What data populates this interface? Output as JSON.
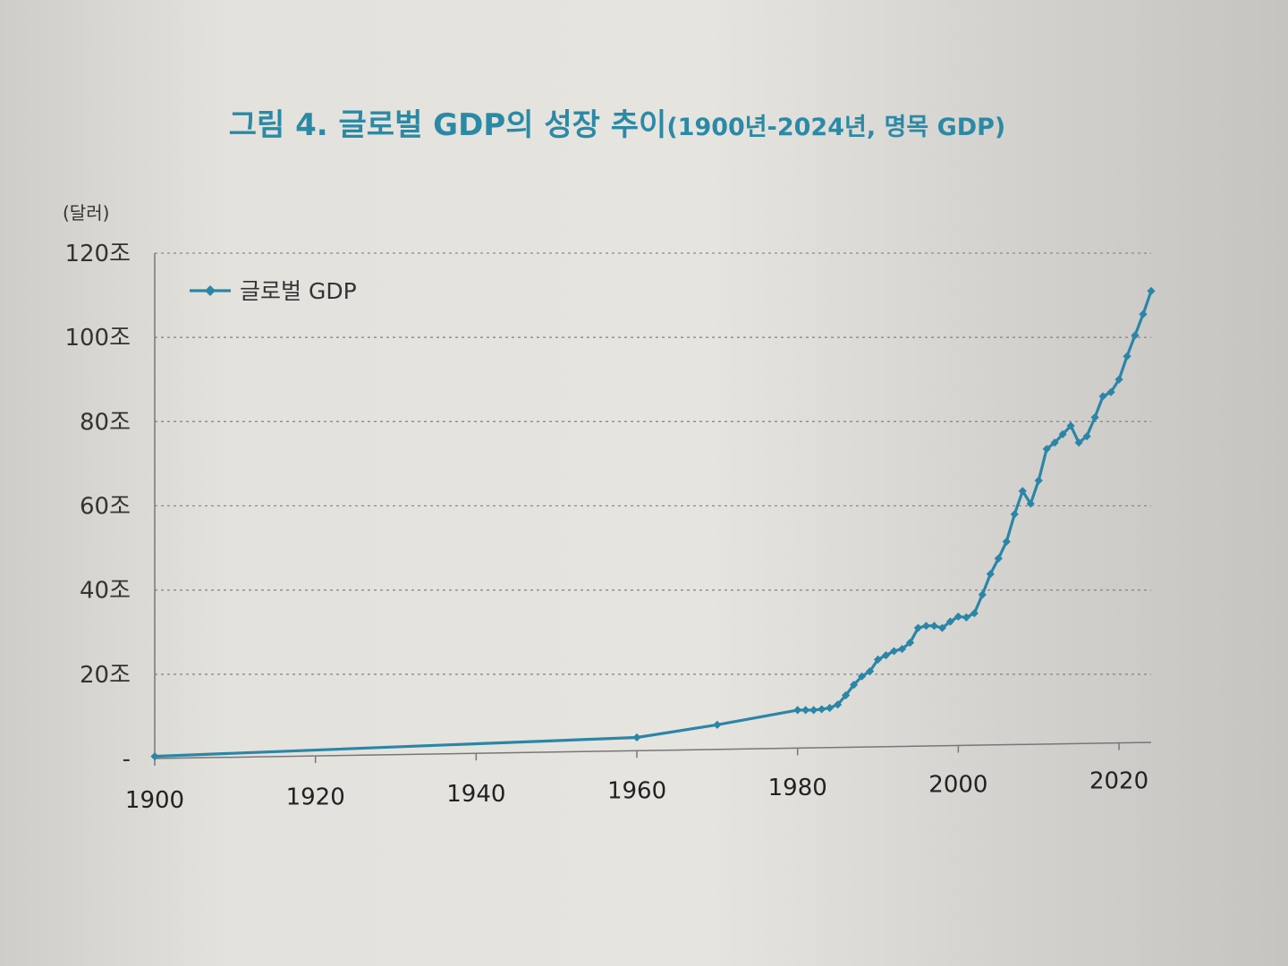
{
  "chart_data": {
    "type": "line",
    "title": "그림 4.  글로벌 GDP의 성장 추이",
    "subtitle": "(1900년-2024년, 명목 GDP)",
    "unit_label": "(달러)",
    "ylim": [
      0,
      120
    ],
    "xlim": [
      1900,
      2024
    ],
    "y_ticks": [
      {
        "value": 0,
        "label": "-"
      },
      {
        "value": 20,
        "label": "20조"
      },
      {
        "value": 40,
        "label": "40조"
      },
      {
        "value": 60,
        "label": "60조"
      },
      {
        "value": 80,
        "label": "80조"
      },
      {
        "value": 100,
        "label": "100조"
      },
      {
        "value": 120,
        "label": "120조"
      }
    ],
    "x_ticks": [
      1900,
      1920,
      1940,
      1960,
      1980,
      2000,
      2020
    ],
    "grid": "horizontal dashed",
    "legend_position": "top-left",
    "colors": {
      "series": "#2a86a8",
      "title": "#2a8aa6"
    },
    "series": [
      {
        "name": "글로벌 GDP",
        "x": [
          1900,
          1960,
          1970,
          1980,
          1981,
          1982,
          1983,
          1984,
          1985,
          1986,
          1987,
          1988,
          1989,
          1990,
          1991,
          1992,
          1993,
          1994,
          1995,
          1996,
          1997,
          1998,
          1999,
          2000,
          2001,
          2002,
          2003,
          2004,
          2005,
          2006,
          2007,
          2008,
          2009,
          2010,
          2011,
          2012,
          2013,
          2014,
          2015,
          2016,
          2017,
          2018,
          2019,
          2020,
          2021,
          2022,
          2023,
          2024
        ],
        "values": [
          0.5,
          5,
          8,
          11.5,
          11.5,
          11.5,
          11.7,
          12,
          12.8,
          15,
          17.5,
          19.5,
          20.7,
          23.5,
          24.5,
          25.5,
          26,
          27.5,
          31,
          31.5,
          31.5,
          31,
          32.5,
          33.7,
          33.5,
          34.5,
          38.9,
          43.8,
          47.5,
          51.5,
          58,
          63.5,
          60.5,
          66,
          73.5,
          75,
          77,
          79,
          75,
          76.5,
          81,
          86,
          87,
          90,
          95.5,
          100.5,
          105.5,
          111
        ]
      }
    ]
  }
}
